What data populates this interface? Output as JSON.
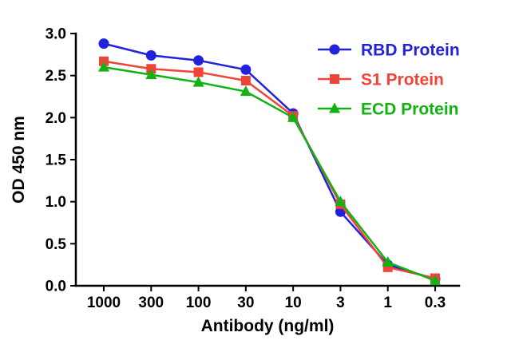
{
  "chart_data": {
    "type": "line",
    "title": "",
    "xlabel": "Antibody (ng/ml)",
    "ylabel": "OD 450 nm",
    "categories": [
      "1000",
      "300",
      "100",
      "30",
      "10",
      "3",
      "1",
      "0.3"
    ],
    "ylim": [
      0,
      3.0
    ],
    "ytick_step": 0.5,
    "ytick_labels": [
      "0.0",
      "0.5",
      "1.0",
      "1.5",
      "2.0",
      "2.5",
      "3.0"
    ],
    "grid": false,
    "legend_position": "top-right",
    "axis_color": "#000000",
    "background_color": "#ffffff",
    "series": [
      {
        "name": "RBD Protein",
        "color": "#2222DD",
        "marker": "circle",
        "values": [
          2.88,
          2.74,
          2.68,
          2.57,
          2.05,
          0.88,
          0.25,
          0.08
        ]
      },
      {
        "name": "S1 Protein",
        "color": "#F04438",
        "marker": "square",
        "values": [
          2.67,
          2.58,
          2.54,
          2.44,
          2.02,
          0.97,
          0.22,
          0.09
        ]
      },
      {
        "name": "ECD Protein",
        "color": "#12B212",
        "marker": "triangle",
        "values": [
          2.6,
          2.51,
          2.42,
          2.31,
          2.0,
          1.0,
          0.28,
          0.06
        ]
      }
    ]
  }
}
